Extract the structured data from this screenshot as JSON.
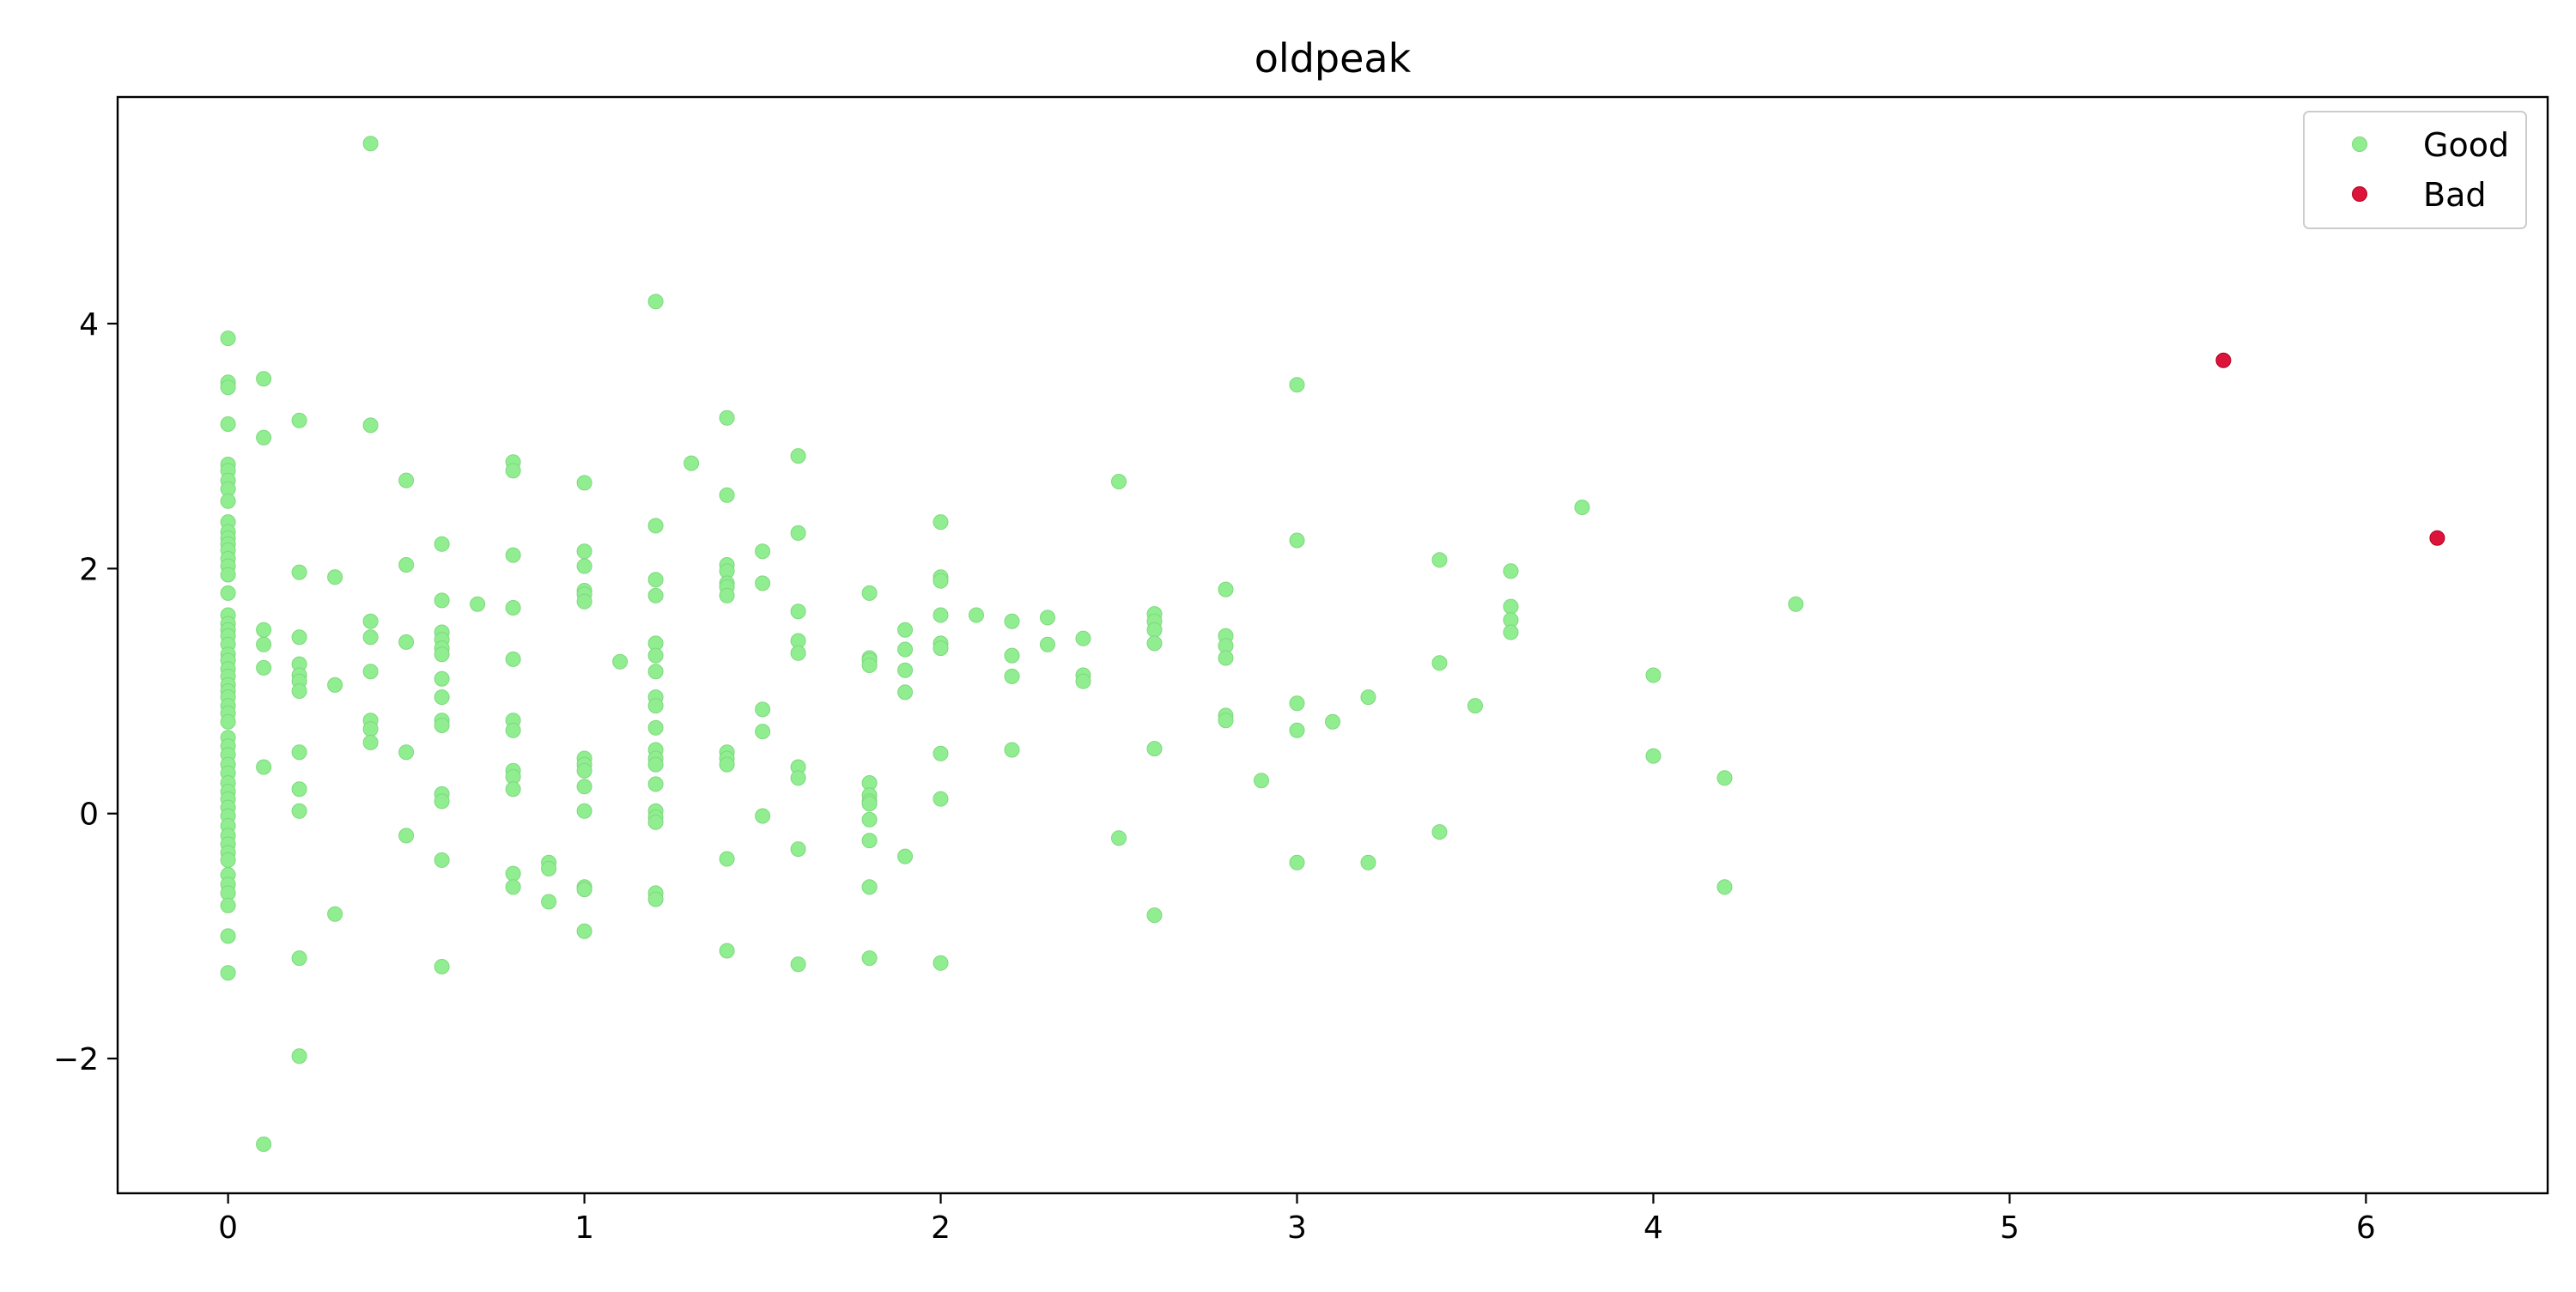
{
  "chart_data": {
    "type": "scatter",
    "title": "oldpeak",
    "xlabel": "",
    "ylabel": "",
    "xlim": [
      -0.31,
      6.51
    ],
    "ylim": [
      -3.1,
      5.85
    ],
    "xticks": [
      0,
      1,
      2,
      3,
      4,
      5,
      6
    ],
    "yticks": [
      -2,
      0,
      2,
      4
    ],
    "grid": false,
    "legend_position": "top-right",
    "series": [
      {
        "name": "Good",
        "color": "#90ee90",
        "points": [
          [
            0,
            3.88
          ],
          [
            0,
            3.52
          ],
          [
            0,
            3.48
          ],
          [
            0,
            3.18
          ],
          [
            0,
            2.85
          ],
          [
            0,
            2.8
          ],
          [
            0,
            2.72
          ],
          [
            0,
            2.65
          ],
          [
            0,
            2.55
          ],
          [
            0,
            2.38
          ],
          [
            0,
            2.3
          ],
          [
            0,
            2.25
          ],
          [
            0,
            2.2
          ],
          [
            0,
            2.15
          ],
          [
            0,
            2.08
          ],
          [
            0,
            2.02
          ],
          [
            0,
            1.95
          ],
          [
            0,
            1.8
          ],
          [
            0,
            1.62
          ],
          [
            0,
            1.55
          ],
          [
            0,
            1.5
          ],
          [
            0,
            1.45
          ],
          [
            0,
            1.38
          ],
          [
            0,
            1.3
          ],
          [
            0,
            1.25
          ],
          [
            0,
            1.18
          ],
          [
            0,
            1.12
          ],
          [
            0,
            1.05
          ],
          [
            0,
            1.0
          ],
          [
            0,
            0.95
          ],
          [
            0,
            0.88
          ],
          [
            0,
            0.82
          ],
          [
            0,
            0.75
          ],
          [
            0,
            0.62
          ],
          [
            0,
            0.55
          ],
          [
            0,
            0.48
          ],
          [
            0,
            0.4
          ],
          [
            0,
            0.33
          ],
          [
            0,
            0.25
          ],
          [
            0,
            0.18
          ],
          [
            0,
            0.12
          ],
          [
            0,
            0.05
          ],
          [
            0,
            -0.02
          ],
          [
            0,
            -0.1
          ],
          [
            0,
            -0.18
          ],
          [
            0,
            -0.25
          ],
          [
            0,
            -0.32
          ],
          [
            0,
            -0.38
          ],
          [
            0,
            -0.5
          ],
          [
            0,
            -0.58
          ],
          [
            0,
            -0.65
          ],
          [
            0,
            -0.75
          ],
          [
            0,
            -1.0
          ],
          [
            0,
            -1.3
          ],
          [
            0.1,
            3.55
          ],
          [
            0.1,
            3.07
          ],
          [
            0.1,
            1.5
          ],
          [
            0.1,
            1.38
          ],
          [
            0.1,
            1.19
          ],
          [
            0.1,
            0.38
          ],
          [
            0.1,
            -2.7
          ],
          [
            0.2,
            3.21
          ],
          [
            0.2,
            1.97
          ],
          [
            0.2,
            1.44
          ],
          [
            0.2,
            1.22
          ],
          [
            0.2,
            1.13
          ],
          [
            0.2,
            1.08
          ],
          [
            0.2,
            1.0
          ],
          [
            0.2,
            0.5
          ],
          [
            0.2,
            0.2
          ],
          [
            0.2,
            0.02
          ],
          [
            0.2,
            -1.18
          ],
          [
            0.2,
            -1.98
          ],
          [
            0.3,
            1.93
          ],
          [
            0.3,
            1.05
          ],
          [
            0.3,
            -0.82
          ],
          [
            0.4,
            5.47
          ],
          [
            0.4,
            3.17
          ],
          [
            0.4,
            1.57
          ],
          [
            0.4,
            1.44
          ],
          [
            0.4,
            1.16
          ],
          [
            0.4,
            0.76
          ],
          [
            0.4,
            0.69
          ],
          [
            0.4,
            0.58
          ],
          [
            0.5,
            2.72
          ],
          [
            0.5,
            2.03
          ],
          [
            0.5,
            1.4
          ],
          [
            0.5,
            0.5
          ],
          [
            0.5,
            -0.18
          ],
          [
            0.6,
            2.2
          ],
          [
            0.6,
            1.74
          ],
          [
            0.6,
            1.48
          ],
          [
            0.6,
            1.42
          ],
          [
            0.6,
            1.35
          ],
          [
            0.6,
            1.3
          ],
          [
            0.6,
            1.1
          ],
          [
            0.6,
            0.95
          ],
          [
            0.6,
            0.76
          ],
          [
            0.6,
            0.72
          ],
          [
            0.6,
            0.16
          ],
          [
            0.6,
            0.1
          ],
          [
            0.6,
            -0.38
          ],
          [
            0.6,
            -1.25
          ],
          [
            0.7,
            1.71
          ],
          [
            0.8,
            2.87
          ],
          [
            0.8,
            2.8
          ],
          [
            0.8,
            2.11
          ],
          [
            0.8,
            1.68
          ],
          [
            0.8,
            1.26
          ],
          [
            0.8,
            0.76
          ],
          [
            0.8,
            0.68
          ],
          [
            0.8,
            0.35
          ],
          [
            0.8,
            0.3
          ],
          [
            0.8,
            0.2
          ],
          [
            0.8,
            -0.49
          ],
          [
            0.8,
            -0.6
          ],
          [
            0.9,
            -0.4
          ],
          [
            0.9,
            -0.45
          ],
          [
            0.9,
            -0.72
          ],
          [
            1,
            2.7
          ],
          [
            1,
            2.14
          ],
          [
            1,
            2.02
          ],
          [
            1,
            1.82
          ],
          [
            1,
            1.79
          ],
          [
            1,
            1.73
          ],
          [
            1,
            0.45
          ],
          [
            1,
            0.4
          ],
          [
            1,
            0.35
          ],
          [
            1,
            0.22
          ],
          [
            1,
            0.02
          ],
          [
            1,
            -0.6
          ],
          [
            1,
            -0.62
          ],
          [
            1,
            -0.96
          ],
          [
            1.1,
            1.24
          ],
          [
            1.2,
            4.18
          ],
          [
            1.2,
            2.35
          ],
          [
            1.2,
            1.91
          ],
          [
            1.2,
            1.78
          ],
          [
            1.2,
            1.39
          ],
          [
            1.2,
            1.29
          ],
          [
            1.2,
            1.16
          ],
          [
            1.2,
            0.95
          ],
          [
            1.2,
            0.88
          ],
          [
            1.2,
            0.7
          ],
          [
            1.2,
            0.52
          ],
          [
            1.2,
            0.45
          ],
          [
            1.2,
            0.4
          ],
          [
            1.2,
            0.24
          ],
          [
            1.2,
            0.02
          ],
          [
            1.2,
            -0.03
          ],
          [
            1.2,
            -0.07
          ],
          [
            1.2,
            -0.65
          ],
          [
            1.2,
            -0.7
          ],
          [
            1.3,
            2.86
          ],
          [
            1.4,
            3.23
          ],
          [
            1.4,
            2.6
          ],
          [
            1.4,
            2.03
          ],
          [
            1.4,
            1.98
          ],
          [
            1.4,
            1.88
          ],
          [
            1.4,
            1.85
          ],
          [
            1.4,
            1.78
          ],
          [
            1.4,
            0.5
          ],
          [
            1.4,
            0.45
          ],
          [
            1.4,
            0.4
          ],
          [
            1.4,
            -0.37
          ],
          [
            1.4,
            -1.12
          ],
          [
            1.5,
            2.14
          ],
          [
            1.5,
            1.88
          ],
          [
            1.5,
            0.85
          ],
          [
            1.5,
            0.67
          ],
          [
            1.5,
            -0.02
          ],
          [
            1.6,
            2.92
          ],
          [
            1.6,
            2.29
          ],
          [
            1.6,
            1.65
          ],
          [
            1.6,
            1.41
          ],
          [
            1.6,
            1.31
          ],
          [
            1.6,
            0.38
          ],
          [
            1.6,
            0.29
          ],
          [
            1.6,
            -0.29
          ],
          [
            1.6,
            -1.23
          ],
          [
            1.8,
            1.8
          ],
          [
            1.8,
            1.27
          ],
          [
            1.8,
            1.25
          ],
          [
            1.8,
            1.21
          ],
          [
            1.8,
            0.25
          ],
          [
            1.8,
            0.15
          ],
          [
            1.8,
            0.1
          ],
          [
            1.8,
            0.08
          ],
          [
            1.8,
            -0.05
          ],
          [
            1.8,
            -0.22
          ],
          [
            1.8,
            -0.6
          ],
          [
            1.8,
            -1.18
          ],
          [
            1.9,
            1.5
          ],
          [
            1.9,
            1.34
          ],
          [
            1.9,
            1.17
          ],
          [
            1.9,
            0.99
          ],
          [
            1.9,
            -0.35
          ],
          [
            2,
            2.38
          ],
          [
            2,
            1.93
          ],
          [
            2,
            1.9
          ],
          [
            2,
            1.62
          ],
          [
            2,
            1.39
          ],
          [
            2,
            1.35
          ],
          [
            2,
            0.49
          ],
          [
            2,
            0.12
          ],
          [
            2,
            -1.22
          ],
          [
            2.1,
            1.62
          ],
          [
            2.2,
            1.57
          ],
          [
            2.2,
            1.29
          ],
          [
            2.2,
            1.12
          ],
          [
            2.2,
            0.52
          ],
          [
            2.3,
            1.6
          ],
          [
            2.3,
            1.38
          ],
          [
            2.4,
            1.43
          ],
          [
            2.4,
            1.13
          ],
          [
            2.4,
            1.08
          ],
          [
            2.5,
            2.71
          ],
          [
            2.5,
            -0.2
          ],
          [
            2.6,
            1.63
          ],
          [
            2.6,
            1.57
          ],
          [
            2.6,
            1.5
          ],
          [
            2.6,
            1.39
          ],
          [
            2.6,
            0.53
          ],
          [
            2.6,
            -0.83
          ],
          [
            2.8,
            1.83
          ],
          [
            2.8,
            1.45
          ],
          [
            2.8,
            1.37
          ],
          [
            2.8,
            1.27
          ],
          [
            2.8,
            0.8
          ],
          [
            2.8,
            0.76
          ],
          [
            2.9,
            0.27
          ],
          [
            3,
            3.5
          ],
          [
            3,
            2.23
          ],
          [
            3,
            0.9
          ],
          [
            3,
            0.68
          ],
          [
            3,
            -0.4
          ],
          [
            3.1,
            0.75
          ],
          [
            3.2,
            0.95
          ],
          [
            3.2,
            -0.4
          ],
          [
            3.4,
            2.07
          ],
          [
            3.4,
            1.23
          ],
          [
            3.4,
            -0.15
          ],
          [
            3.5,
            0.88
          ],
          [
            3.6,
            1.98
          ],
          [
            3.6,
            1.69
          ],
          [
            3.6,
            1.58
          ],
          [
            3.6,
            1.48
          ],
          [
            3.8,
            2.5
          ],
          [
            4,
            1.13
          ],
          [
            4,
            0.47
          ],
          [
            4.2,
            0.29
          ],
          [
            4.2,
            -0.6
          ],
          [
            4.4,
            1.71
          ]
        ]
      },
      {
        "name": "Bad",
        "color": "#dc143c",
        "points": [
          [
            5.6,
            3.7
          ],
          [
            6.2,
            2.25
          ]
        ]
      }
    ]
  }
}
